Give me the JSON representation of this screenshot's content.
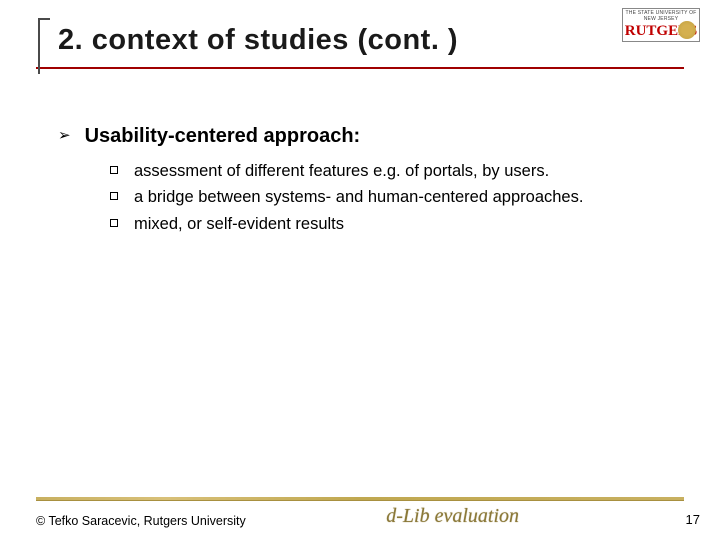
{
  "title": "2. context of studies (cont. )",
  "logo": {
    "line1": "THE STATE UNIVERSITY OF NEW JERSEY",
    "name": "RUTGERS"
  },
  "content": {
    "heading": "Usability-centered approach:",
    "items": [
      "assessment of different features e.g. of portals, by users.",
      "a bridge between systems- and human-centered approaches.",
      "mixed, or self-evident results"
    ]
  },
  "footer": {
    "copyright": "© Tefko Saracevic, Rutgers University",
    "script": "d-Lib evaluation",
    "page": "17"
  },
  "colors": {
    "title_rule": "#a00000",
    "footer_rule": "#c8b060",
    "logo_red": "#c00000",
    "script_color": "#8a7838"
  }
}
